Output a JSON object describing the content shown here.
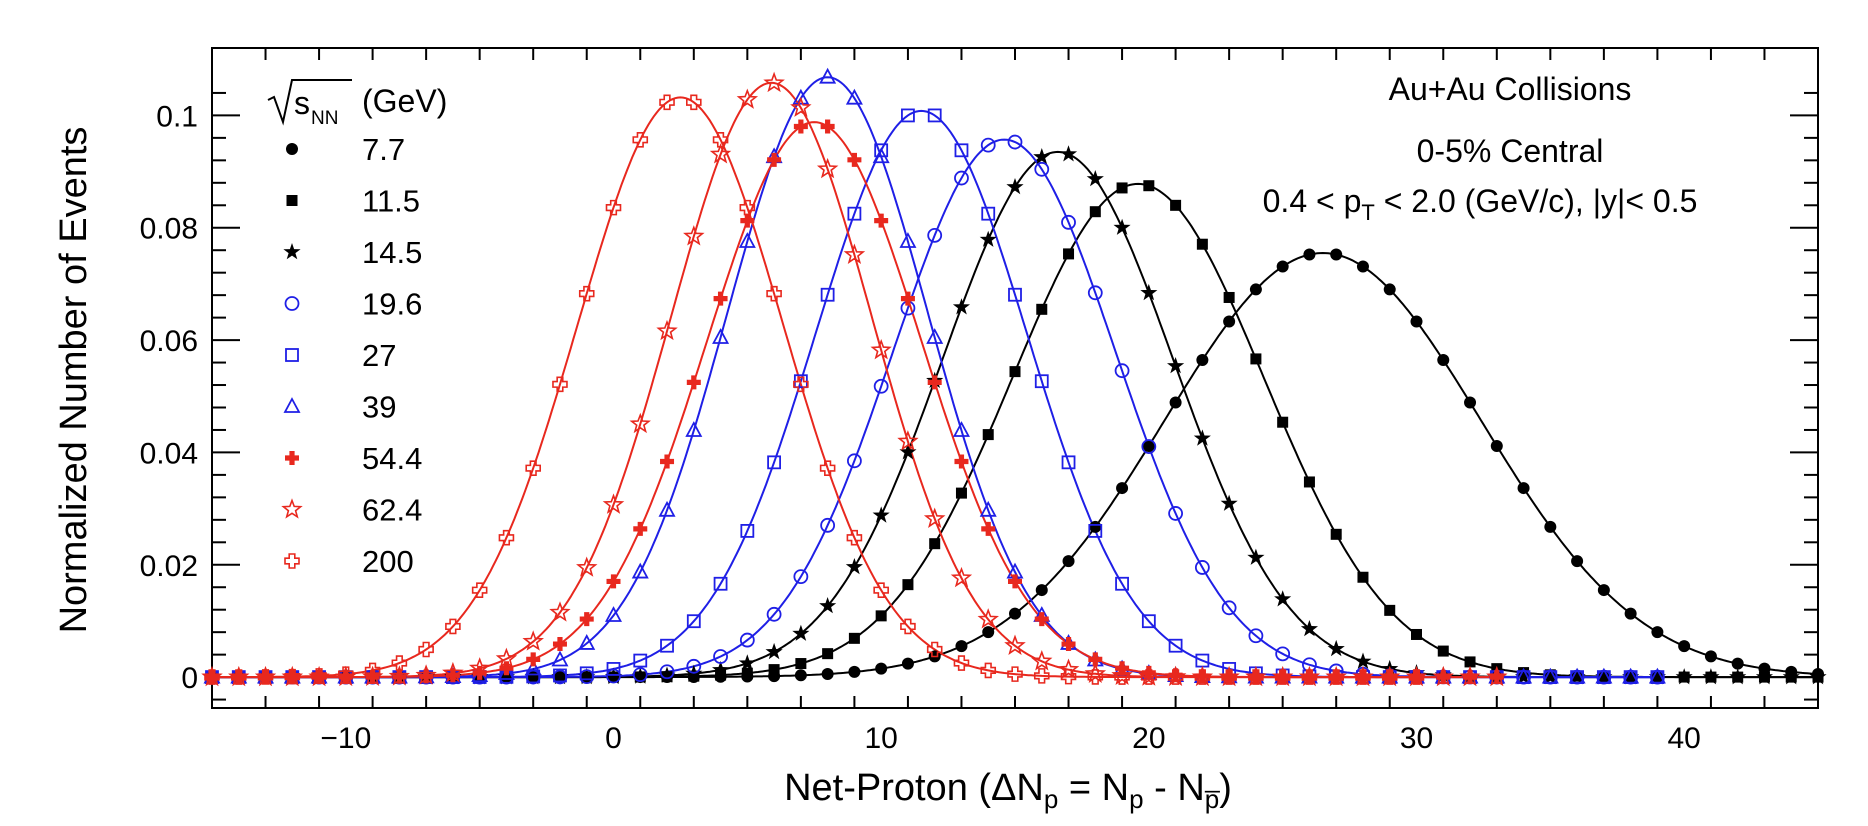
{
  "chart_data": {
    "type": "line",
    "xlabel": "Net-Proton (ΔNp = Np - Np̄)",
    "ylabel": "Normalized Number of Events",
    "xlim": [
      -15,
      45
    ],
    "ylim": [
      -0.0055,
      0.112
    ],
    "x_ticks": [
      -10,
      0,
      10,
      20,
      30,
      40
    ],
    "y_ticks": [
      0,
      0.02,
      0.04,
      0.06,
      0.08,
      0.1
    ],
    "x_tick_labels": [
      "−10",
      "0",
      "10",
      "20",
      "30",
      "40"
    ],
    "y_tick_labels": [
      "0",
      "0.02",
      "0.04",
      "0.06",
      "0.08",
      "0.1"
    ],
    "legend": {
      "title": "√sNN (GeV)",
      "placement": "top-left"
    },
    "annotations": [
      "Au+Au Collisions",
      "0-5% Central",
      "0.4 < pT < 2.0 (GeV/c), |y|< 0.5"
    ],
    "series": [
      {
        "name": "7.7",
        "color": "#000000",
        "marker": "filled-circle",
        "mean": 26.5,
        "sigma": 5.9,
        "peak": 0.0755,
        "x_range": [
          -15,
          45
        ]
      },
      {
        "name": "11.5",
        "color": "#000000",
        "marker": "filled-square",
        "mean": 19.6,
        "sigma": 4.7,
        "peak": 0.0878,
        "x_range": [
          -15,
          45
        ]
      },
      {
        "name": "14.5",
        "color": "#000000",
        "marker": "filled-star",
        "mean": 16.6,
        "sigma": 4.3,
        "peak": 0.0935,
        "x_range": [
          -15,
          45
        ]
      },
      {
        "name": "19.6",
        "color": "#1f1fe6",
        "marker": "open-circle",
        "mean": 14.6,
        "sigma": 4.15,
        "peak": 0.0957,
        "x_range": [
          -15,
          39
        ]
      },
      {
        "name": "27",
        "color": "#1f1fe6",
        "marker": "open-square",
        "mean": 11.5,
        "sigma": 3.95,
        "peak": 0.1008,
        "x_range": [
          -15,
          39
        ]
      },
      {
        "name": "39",
        "color": "#1f1fe6",
        "marker": "open-triangle",
        "mean": 8.0,
        "sigma": 3.75,
        "peak": 0.1068,
        "x_range": [
          -15,
          39
        ]
      },
      {
        "name": "54.4",
        "color": "#e8281e",
        "marker": "filled-cross",
        "mean": 7.5,
        "sigma": 4.0,
        "peak": 0.0988,
        "x_range": [
          -15,
          33
        ]
      },
      {
        "name": "62.4",
        "color": "#e8281e",
        "marker": "open-star",
        "mean": 5.9,
        "sigma": 3.75,
        "peak": 0.1058,
        "x_range": [
          -15,
          33
        ]
      },
      {
        "name": "200",
        "color": "#e8281e",
        "marker": "open-cross",
        "mean": 2.5,
        "sigma": 3.85,
        "peak": 0.1032,
        "x_range": [
          -15,
          30
        ]
      }
    ]
  }
}
